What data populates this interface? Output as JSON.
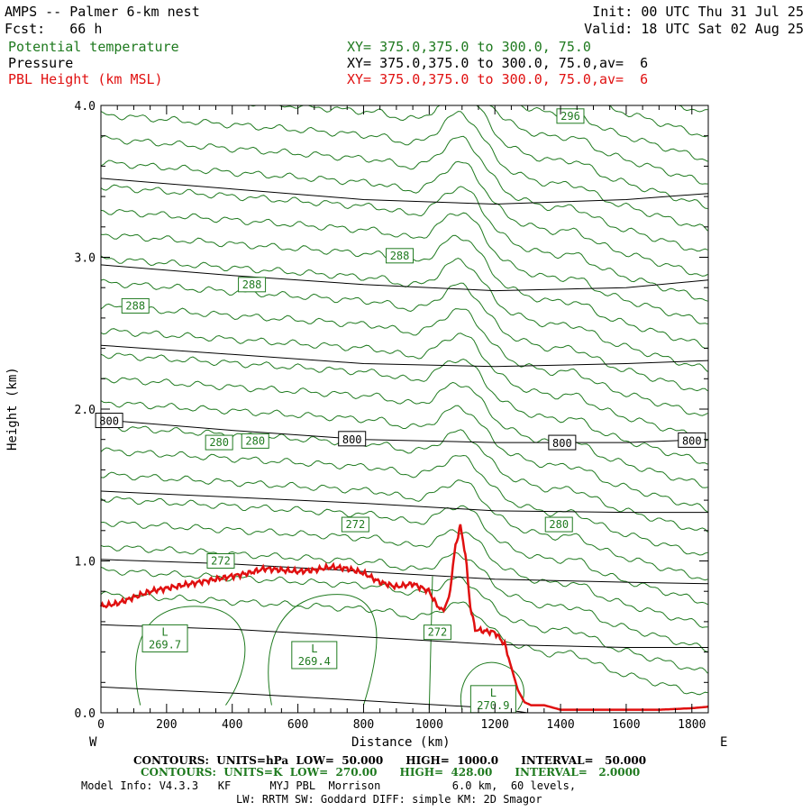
{
  "header": {
    "title": "AMPS -- Palmer 6-km nest",
    "fcst": "Fcst:   66 h",
    "init": "Init: 00 UTC Thu 31 Jul 25",
    "valid": "Valid: 18 UTC Sat 02 Aug 25",
    "fields": [
      {
        "name": "Potential temperature",
        "xy": "XY= 375.0,375.0 to 300.0, 75.0",
        "color": "#1f7a1f"
      },
      {
        "name": "Pressure",
        "xy": "XY= 375.0,375.0 to 300.0, 75.0,av=  6",
        "color": "#000000"
      },
      {
        "name": "PBL Height (km MSL)",
        "xy": "XY= 375.0,375.0 to 300.0, 75.0,av=  6",
        "color": "#e01010"
      }
    ]
  },
  "footer": {
    "pressure_contours": "CONTOURS:  UNITS=hPa  LOW=  50.000      HIGH=  1000.0      INTERVAL=   50.000",
    "theta_contours": "CONTOURS:  UNITS=K  LOW=  270.00      HIGH=  428.00      INTERVAL=   2.0000",
    "model_info": "Model Info: V4.3.3   KF      MYJ PBL  Morrison           6.0 km,  60 levels,",
    "physics": "LW: RRTM SW: Goddard DIFF: simple KM: 2D Smagor"
  },
  "chart_data": {
    "type": "line",
    "xlabel": "Distance (km)",
    "ylabel": "Height (km)",
    "xlim": [
      0,
      1850
    ],
    "ylim": [
      0,
      4.0
    ],
    "x_ticks": [
      0,
      200,
      400,
      600,
      800,
      1000,
      1200,
      1400,
      1600,
      1800
    ],
    "y_ticks": [
      "0.0",
      "1.0",
      "2.0",
      "3.0",
      "4.0"
    ],
    "x_end_labels": {
      "left": "W",
      "right": "E"
    },
    "pbl_height": {
      "name": "PBL Height (km MSL)",
      "color": "#e01010",
      "x": [
        0,
        50,
        100,
        150,
        200,
        250,
        300,
        350,
        400,
        450,
        500,
        550,
        600,
        650,
        700,
        750,
        800,
        850,
        900,
        950,
        1000,
        1020,
        1040,
        1060,
        1080,
        1095,
        1110,
        1125,
        1140,
        1160,
        1200,
        1230,
        1250,
        1270,
        1290,
        1310,
        1350,
        1400,
        1500,
        1600,
        1700,
        1800,
        1850
      ],
      "y": [
        0.7,
        0.72,
        0.76,
        0.8,
        0.82,
        0.84,
        0.86,
        0.88,
        0.9,
        0.92,
        0.95,
        0.94,
        0.93,
        0.94,
        0.96,
        0.95,
        0.92,
        0.86,
        0.83,
        0.85,
        0.8,
        0.72,
        0.67,
        0.75,
        1.1,
        1.23,
        1.05,
        0.7,
        0.55,
        0.54,
        0.53,
        0.45,
        0.3,
        0.15,
        0.07,
        0.05,
        0.05,
        0.02,
        0.02,
        0.02,
        0.02,
        0.03,
        0.04
      ]
    },
    "pressure_contours": {
      "units": "hPa",
      "color": "#000000",
      "lines": [
        {
          "x": [
            0,
            400,
            800,
            1200,
            1600,
            1850
          ],
          "y": [
            3.52,
            3.45,
            3.38,
            3.35,
            3.38,
            3.42
          ]
        },
        {
          "x": [
            0,
            400,
            800,
            1200,
            1600,
            1850
          ],
          "y": [
            2.95,
            2.88,
            2.82,
            2.78,
            2.8,
            2.85
          ]
        },
        {
          "x": [
            0,
            400,
            800,
            1200,
            1600,
            1850
          ],
          "y": [
            2.42,
            2.36,
            2.3,
            2.28,
            2.3,
            2.32
          ]
        },
        {
          "x": [
            0,
            400,
            800,
            1200,
            1600,
            1850
          ],
          "y": [
            1.93,
            1.86,
            1.8,
            1.78,
            1.78,
            1.8
          ],
          "label": "800",
          "label_x": [
            25,
            765,
            1405,
            1800
          ]
        },
        {
          "x": [
            0,
            400,
            800,
            1200,
            1600,
            1850
          ],
          "y": [
            1.46,
            1.42,
            1.38,
            1.33,
            1.32,
            1.32
          ]
        },
        {
          "x": [
            0,
            400,
            800,
            1200,
            1600,
            1850
          ],
          "y": [
            1.01,
            0.98,
            0.93,
            0.88,
            0.86,
            0.85
          ]
        },
        {
          "x": [
            0,
            400,
            800,
            1200,
            1600,
            1850
          ],
          "y": [
            0.58,
            0.55,
            0.5,
            0.45,
            0.43,
            0.43
          ]
        },
        {
          "x": [
            0,
            400,
            800,
            1200,
            1300
          ],
          "y": [
            0.17,
            0.13,
            0.08,
            0.03,
            0.0
          ]
        }
      ]
    },
    "theta_contours": {
      "units": "K",
      "color": "#1f7a1f",
      "labels": [
        {
          "text": "296",
          "x": 1430,
          "y": 3.93
        },
        {
          "text": "288",
          "x": 910,
          "y": 3.01
        },
        {
          "text": "288",
          "x": 460,
          "y": 2.82
        },
        {
          "text": "288",
          "x": 105,
          "y": 2.68
        },
        {
          "text": "280",
          "x": 360,
          "y": 1.78
        },
        {
          "text": "280",
          "x": 470,
          "y": 1.79
        },
        {
          "text": "280",
          "x": 1395,
          "y": 1.24
        },
        {
          "text": "272",
          "x": 775,
          "y": 1.24
        },
        {
          "text": "272",
          "x": 365,
          "y": 1.0
        },
        {
          "text": "272",
          "x": 1025,
          "y": 0.53
        },
        {
          "text": "L\n269.7",
          "x": 195,
          "y": 0.49,
          "boxed": true
        },
        {
          "text": "L\n269.4",
          "x": 650,
          "y": 0.38,
          "boxed": true
        },
        {
          "text": "L\n270.9",
          "x": 1195,
          "y": 0.09,
          "boxed": true
        }
      ]
    }
  }
}
